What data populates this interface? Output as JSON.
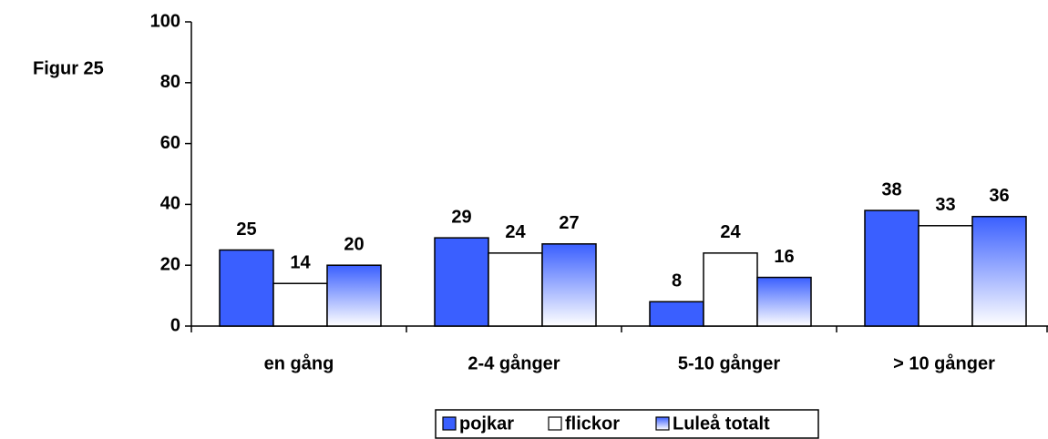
{
  "chart_data": {
    "type": "bar",
    "title": "Figur 25",
    "categories": [
      "en gång",
      "2-4 gånger",
      "5-10 gånger",
      "> 10 gånger"
    ],
    "series": [
      {
        "name": "pojkar",
        "color": "#3a5fff",
        "values": [
          25,
          29,
          8,
          38
        ]
      },
      {
        "name": "flickor",
        "color": "#ffffff",
        "values": [
          14,
          24,
          24,
          33
        ]
      },
      {
        "name": "Luleå totalt",
        "color": "#3a5fff",
        "fill": "gradient",
        "values": [
          20,
          27,
          16,
          36
        ]
      }
    ],
    "ylim": [
      0,
      100
    ],
    "yticks": [
      0,
      20,
      40,
      60,
      80,
      100
    ],
    "grid": false,
    "legend": "bottom"
  }
}
